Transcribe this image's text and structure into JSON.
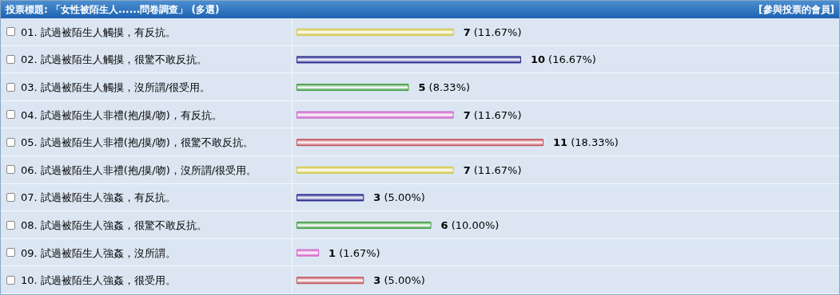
{
  "chart_data": {
    "type": "bar",
    "orientation": "horizontal",
    "title": "投票標題: 「女性被陌生人......問卷調查」 (多選)",
    "annotations": [
      "[參與投票的會員]"
    ],
    "categories": [
      "01. 試過被陌生人觸摸，有反抗。",
      "02. 試過被陌生人觸摸，很驚不敢反抗。",
      "03. 試過被陌生人觸摸，沒所謂/很受用。",
      "04. 試過被陌生人非禮(抱/摸/吻)，有反抗。",
      "05. 試過被陌生人非禮(抱/摸/吻)，很驚不敢反抗。",
      "06. 試過被陌生人非禮(抱/摸/吻)，沒所謂/很受用。",
      "07. 試過被陌生人強姦，有反抗。",
      "08. 試過被陌生人強姦，很驚不敢反抗。",
      "09. 試過被陌生人強姦，沒所謂。",
      "10. 試過被陌生人強姦，很受用。"
    ],
    "values": [
      7,
      10,
      5,
      7,
      11,
      7,
      3,
      6,
      1,
      3
    ],
    "value_labels": [
      "7 (11.67%)",
      "10 (16.67%)",
      "5 (8.33%)",
      "7 (11.67%)",
      "11 (18.33%)",
      "7 (11.67%)",
      "3 (5.00%)",
      "6 (10.00%)",
      "1 (1.67%)",
      "3 (5.00%)"
    ],
    "colors": [
      "#d2c640",
      "#22228c",
      "#3f9a3f",
      "#d060c8",
      "#c4505c",
      "#d2c640",
      "#22228c",
      "#3f9a3f",
      "#d060c8",
      "#c4505c"
    ],
    "grid": false
  }
}
